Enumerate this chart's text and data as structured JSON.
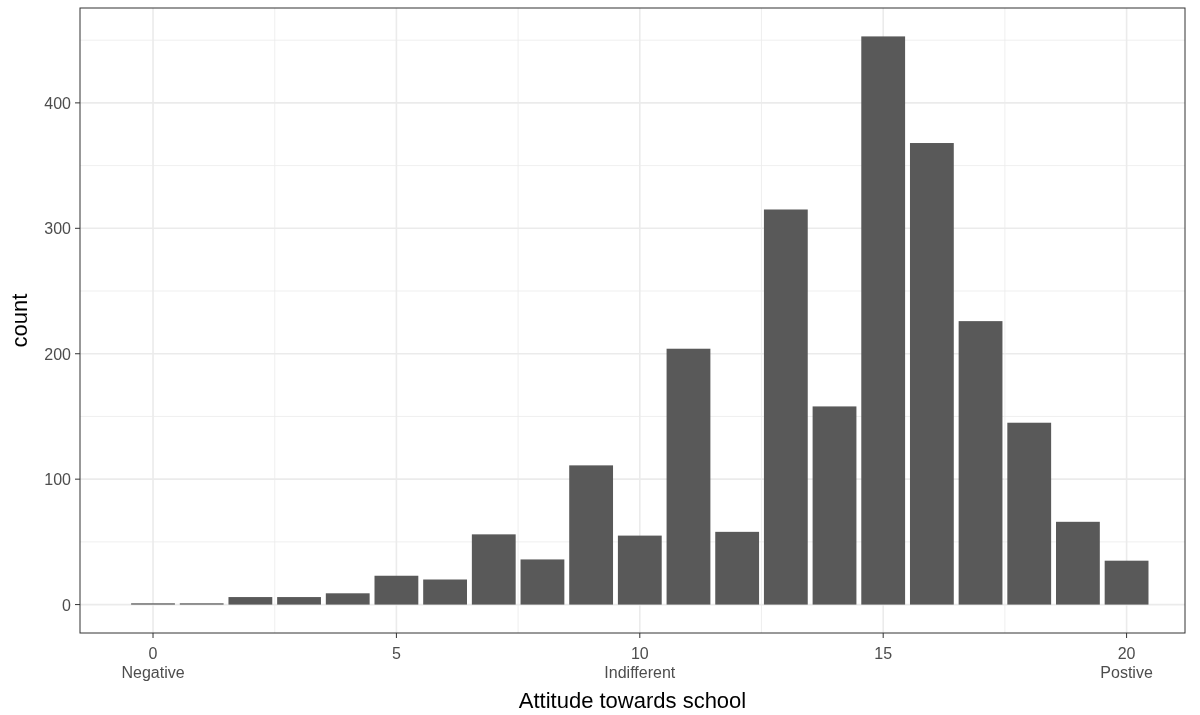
{
  "chart_data": {
    "type": "bar",
    "xlabel": "Attitude towards school",
    "ylabel": "count",
    "x": [
      0,
      1,
      2,
      3,
      4,
      5,
      6,
      7,
      8,
      9,
      10,
      11,
      12,
      13,
      14,
      15,
      16,
      17,
      18,
      19,
      20
    ],
    "values": [
      1,
      1,
      6,
      6,
      9,
      23,
      20,
      56,
      36,
      111,
      55,
      204,
      58,
      315,
      158,
      453,
      368,
      226,
      145,
      66,
      35
    ],
    "color": "#595959",
    "xlim": [
      -1.5,
      21.2
    ],
    "xticks": [
      {
        "value": 0,
        "label": "0\nNegative"
      },
      {
        "value": 2.5,
        "label": null
      },
      5,
      {
        "value": 7.5,
        "label": null
      },
      {
        "value": 10,
        "label": "10\nIndifferent"
      },
      {
        "value": 12.5,
        "label": null
      },
      15,
      {
        "value": 17.5,
        "label": null
      },
      {
        "value": 20,
        "label": "20\nPostive"
      }
    ],
    "ylim": [
      -22.65,
      475.65
    ],
    "yticks": [
      0,
      {
        "value": 50,
        "label": null
      },
      100,
      {
        "value": 150,
        "label": null
      },
      200,
      {
        "value": 250,
        "label": null
      },
      300,
      {
        "value": 350,
        "label": null
      },
      400,
      {
        "value": 450,
        "label": null
      }
    ],
    "grid": true
  }
}
